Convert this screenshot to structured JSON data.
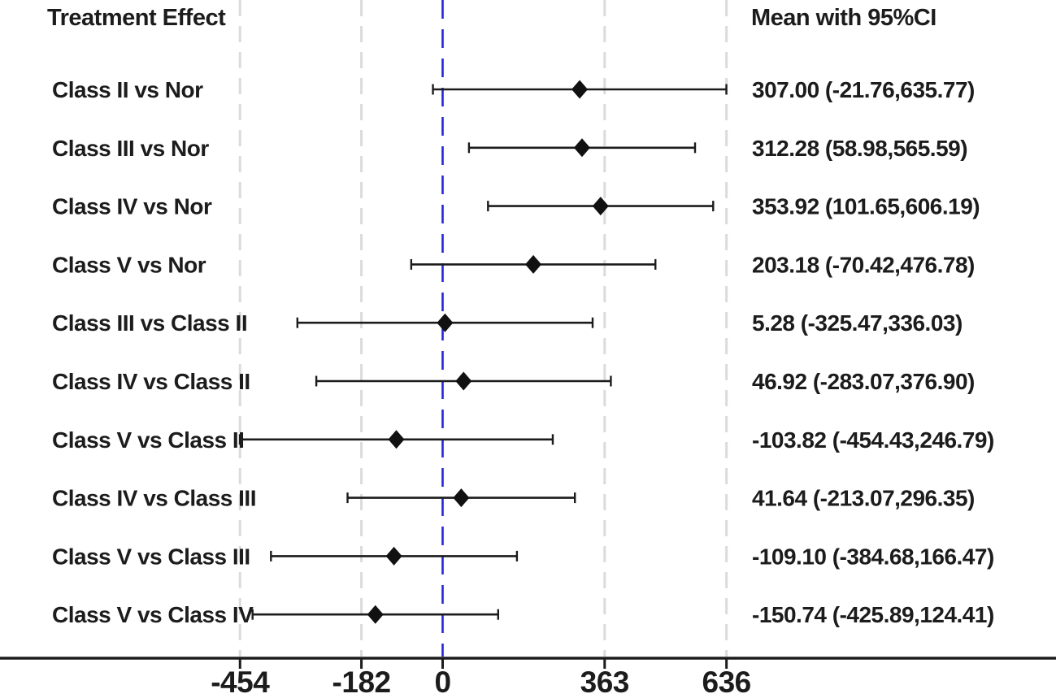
{
  "header": {
    "left_title": "Treatment Effect",
    "right_title": "Mean with 95%CI"
  },
  "chart_data": {
    "type": "forest",
    "title_left_column": "Treatment Effect",
    "title_right_column": "Mean with 95%CI",
    "rows": [
      {
        "label": "Class II vs Nor",
        "mean": 307.0,
        "lower": -21.76,
        "upper": 635.77,
        "value_text": "307.00 (-21.76,635.77)"
      },
      {
        "label": "Class III vs Nor",
        "mean": 312.28,
        "lower": 58.98,
        "upper": 565.59,
        "value_text": "312.28 (58.98,565.59)"
      },
      {
        "label": "Class IV vs Nor",
        "mean": 353.92,
        "lower": 101.65,
        "upper": 606.19,
        "value_text": "353.92 (101.65,606.19)"
      },
      {
        "label": "Class V vs Nor",
        "mean": 203.18,
        "lower": -70.42,
        "upper": 476.78,
        "value_text": "203.18 (-70.42,476.78)"
      },
      {
        "label": "Class III vs Class II",
        "mean": 5.28,
        "lower": -325.47,
        "upper": 336.03,
        "value_text": "5.28 (-325.47,336.03)"
      },
      {
        "label": "Class IV vs Class II",
        "mean": 46.92,
        "lower": -283.07,
        "upper": 376.9,
        "value_text": "46.92 (-283.07,376.90)"
      },
      {
        "label": "Class V vs Class II",
        "mean": -103.82,
        "lower": -454.43,
        "upper": 246.79,
        "value_text": "-103.82 (-454.43,246.79)"
      },
      {
        "label": "Class IV vs Class III",
        "mean": 41.64,
        "lower": -213.07,
        "upper": 296.35,
        "value_text": "41.64 (-213.07,296.35)"
      },
      {
        "label": "Class V vs Class III",
        "mean": -109.1,
        "lower": -384.68,
        "upper": 166.47,
        "value_text": "-109.10 (-384.68,166.47)"
      },
      {
        "label": "Class V vs Class IV",
        "mean": -150.74,
        "lower": -425.89,
        "upper": 124.41,
        "value_text": "-150.74 (-425.89,124.41)"
      }
    ],
    "x_ticks": [
      -454,
      -182,
      0,
      363,
      636
    ],
    "x_tick_labels": [
      "-454",
      "-182",
      "0",
      "363",
      "636"
    ],
    "reference_line": 0,
    "xlim": [
      -992,
      1374
    ],
    "grid": "vertical-dashed-at-ticks",
    "legend_position": "none",
    "colors": {
      "marker": "#111111",
      "ci_line": "#1c1c1c",
      "axis": "#1c1c1c",
      "text": "#1c1c1c",
      "gridline": "#dbdbdb",
      "reference_line": "#2424d8",
      "background": "#ffffff"
    }
  }
}
